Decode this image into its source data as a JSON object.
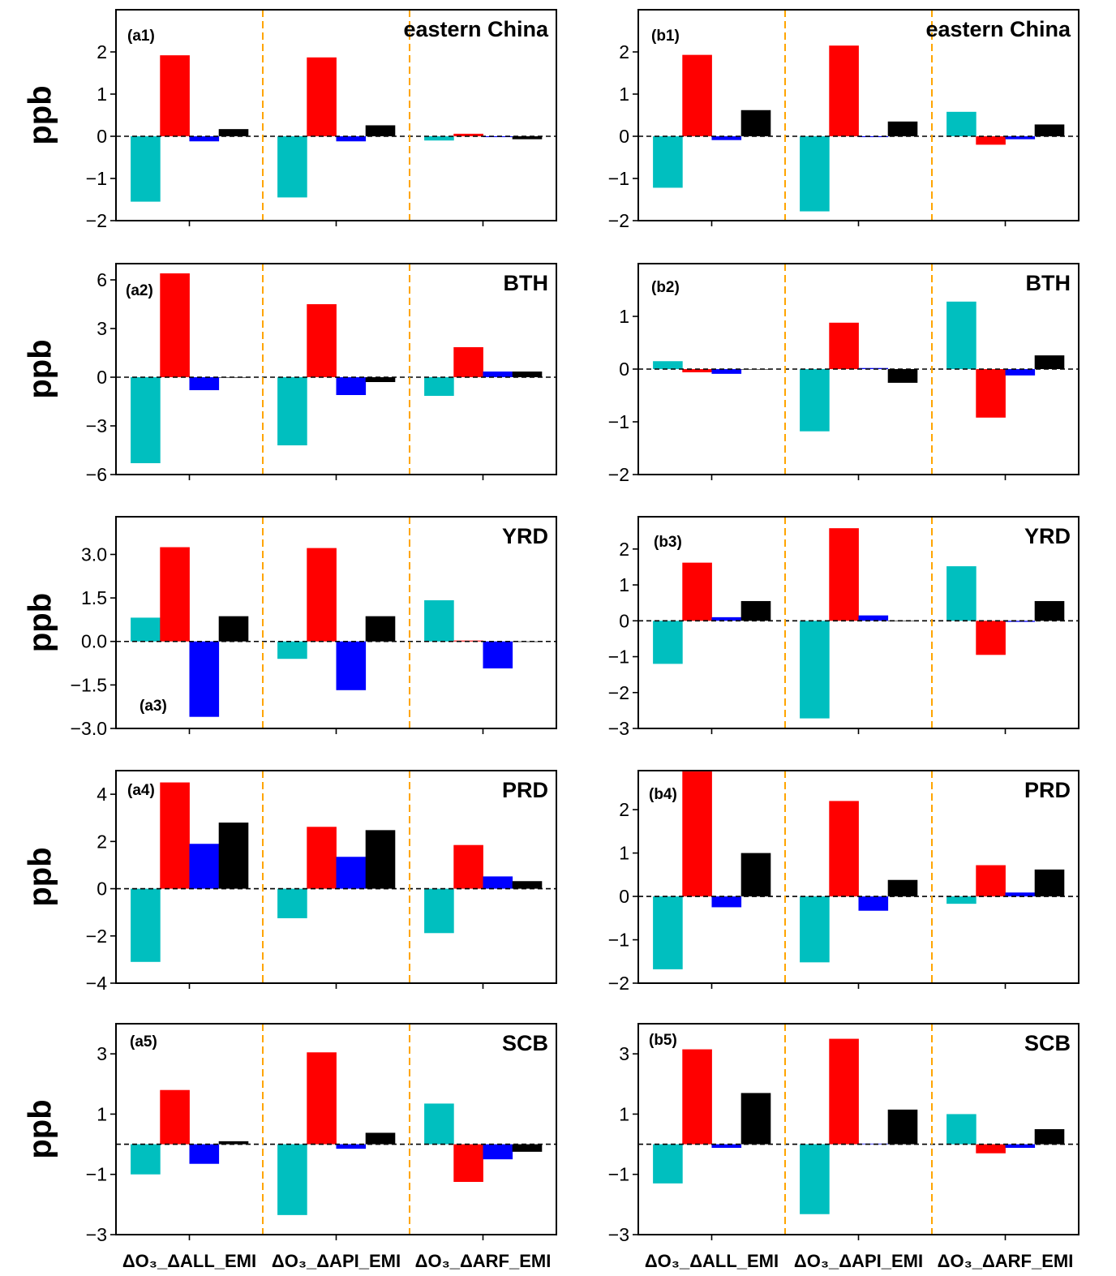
{
  "colors": {
    "dO3": "#00bfbf",
    "pos": "#ff0000",
    "neg": "#0000ff",
    "ext": "#000000",
    "separator": "#ffa500"
  },
  "chart_data": [
    {
      "type": "bar",
      "panel": "(a1)",
      "title": "eastern China",
      "ylabel": "ppb",
      "ylim": [
        -2,
        3
      ],
      "yticks": [
        -2,
        -1,
        0,
        1,
        2
      ],
      "ytick_labels": [
        "−2",
        "−1",
        "0",
        "1",
        "2"
      ],
      "categories": [
        "ΔO₃_ΔALL_EMI",
        "ΔO₃_ΔAPI_EMI",
        "ΔO₃_ΔARF_EMI"
      ],
      "values": [
        [
          -1.55,
          1.92,
          -0.12,
          0.17
        ],
        [
          -1.45,
          1.87,
          -0.12,
          0.26
        ],
        [
          -0.1,
          0.06,
          -0.02,
          -0.07
        ]
      ]
    },
    {
      "type": "bar",
      "panel": "(a2)",
      "title": "BTH",
      "ylabel": "ppb",
      "ylim": [
        -6,
        7
      ],
      "yticks": [
        -6,
        -3,
        0,
        3,
        6
      ],
      "ytick_labels": [
        "−6",
        "−3",
        "0",
        "3",
        "6"
      ],
      "categories": [
        "ΔO₃_ΔALL_EMI",
        "ΔO₃_ΔAPI_EMI",
        "ΔO₃_ΔARF_EMI"
      ],
      "values": [
        [
          -5.3,
          6.4,
          -0.8,
          0.0
        ],
        [
          -4.2,
          4.5,
          -1.1,
          -0.3
        ],
        [
          -1.15,
          1.85,
          0.35,
          0.35
        ]
      ]
    },
    {
      "type": "bar",
      "panel": "(a3)",
      "title": "YRD",
      "ylabel": "ppb",
      "ylim": [
        -3,
        4.3
      ],
      "yticks": [
        -3,
        -1.5,
        0,
        1.5,
        3
      ],
      "ytick_labels": [
        "−3.0",
        "−1.5",
        "0.0",
        "1.5",
        "3.0"
      ],
      "categories": [
        "ΔO₃_ΔALL_EMI",
        "ΔO₃_ΔAPI_EMI",
        "ΔO₃_ΔARF_EMI"
      ],
      "values": [
        [
          0.82,
          3.25,
          -2.6,
          0.87
        ],
        [
          -0.6,
          3.22,
          -1.68,
          0.87
        ],
        [
          1.42,
          0.03,
          -0.93,
          0.0
        ]
      ]
    },
    {
      "type": "bar",
      "panel": "(a4)",
      "title": "PRD",
      "ylabel": "ppb",
      "ylim": [
        -4,
        5
      ],
      "yticks": [
        -4,
        -2,
        0,
        2,
        4
      ],
      "ytick_labels": [
        "−4",
        "−2",
        "0",
        "2",
        "4"
      ],
      "categories": [
        "ΔO₃_ΔALL_EMI",
        "ΔO₃_ΔAPI_EMI",
        "ΔO₃_ΔARF_EMI"
      ],
      "values": [
        [
          -3.1,
          4.5,
          1.9,
          2.8
        ],
        [
          -1.25,
          2.62,
          1.35,
          2.48
        ],
        [
          -1.88,
          1.85,
          0.52,
          0.32
        ]
      ]
    },
    {
      "type": "bar",
      "panel": "(a5)",
      "title": "SCB",
      "ylabel": "ppb",
      "ylim": [
        -3,
        4
      ],
      "yticks": [
        -3,
        -1,
        1,
        3
      ],
      "ytick_labels": [
        "−3",
        "−1",
        "1",
        "3"
      ],
      "categories": [
        "ΔO₃_ΔALL_EMI",
        "ΔO₃_ΔAPI_EMI",
        "ΔO₃_ΔARF_EMI"
      ],
      "values": [
        [
          -1.0,
          1.8,
          -0.65,
          0.1
        ],
        [
          -2.35,
          3.05,
          -0.15,
          0.38
        ],
        [
          1.35,
          -1.25,
          -0.5,
          -0.25
        ]
      ]
    },
    {
      "type": "bar",
      "panel": "(b1)",
      "title": "eastern China",
      "ylabel": "",
      "ylim": [
        -2,
        3
      ],
      "yticks": [
        -2,
        -1,
        0,
        1,
        2
      ],
      "ytick_labels": [
        "−2",
        "−1",
        "0",
        "1",
        "2"
      ],
      "categories": [
        "ΔO₃_ΔALL_EMI",
        "ΔO₃_ΔAPI_EMI",
        "ΔO₃_ΔARF_EMI"
      ],
      "values": [
        [
          -1.22,
          1.93,
          -0.09,
          0.62
        ],
        [
          -1.78,
          2.15,
          -0.02,
          0.35
        ],
        [
          0.58,
          -0.2,
          -0.07,
          0.28
        ]
      ]
    },
    {
      "type": "bar",
      "panel": "(b2)",
      "title": "BTH",
      "ylabel": "",
      "ylim": [
        -2,
        2
      ],
      "yticks": [
        -2,
        -1,
        0,
        1
      ],
      "ytick_labels": [
        "−2",
        "−1",
        "0",
        "1"
      ],
      "categories": [
        "ΔO₃_ΔALL_EMI",
        "ΔO₃_ΔAPI_EMI",
        "ΔO₃_ΔARF_EMI"
      ],
      "values": [
        [
          0.15,
          -0.06,
          -0.09,
          0.0
        ],
        [
          -1.18,
          0.88,
          0.02,
          -0.26
        ],
        [
          1.28,
          -0.92,
          -0.12,
          0.26
        ]
      ]
    },
    {
      "type": "bar",
      "panel": "(b3)",
      "title": "YRD",
      "ylabel": "",
      "ylim": [
        -3,
        2.9
      ],
      "yticks": [
        -3,
        -2,
        -1,
        0,
        1,
        2
      ],
      "ytick_labels": [
        "−3",
        "−2",
        "−1",
        "0",
        "1",
        "2"
      ],
      "categories": [
        "ΔO₃_ΔALL_EMI",
        "ΔO₃_ΔAPI_EMI",
        "ΔO₃_ΔARF_EMI"
      ],
      "values": [
        [
          -1.2,
          1.62,
          0.1,
          0.55
        ],
        [
          -2.72,
          2.58,
          0.15,
          0.0
        ],
        [
          1.52,
          -0.95,
          -0.03,
          0.55
        ]
      ]
    },
    {
      "type": "bar",
      "panel": "(b4)",
      "title": "PRD",
      "ylabel": "",
      "ylim": [
        -2,
        2.9
      ],
      "yticks": [
        -2,
        -1,
        0,
        1,
        2
      ],
      "ytick_labels": [
        "−2",
        "−1",
        "0",
        "1",
        "2"
      ],
      "categories": [
        "ΔO₃_ΔALL_EMI",
        "ΔO₃_ΔAPI_EMI",
        "ΔO₃_ΔARF_EMI"
      ],
      "values": [
        [
          -1.68,
          2.88,
          -0.25,
          1.0
        ],
        [
          -1.52,
          2.2,
          -0.33,
          0.38
        ],
        [
          -0.17,
          0.72,
          0.09,
          0.62
        ]
      ]
    },
    {
      "type": "bar",
      "panel": "(b5)",
      "title": "SCB",
      "ylabel": "",
      "ylim": [
        -3,
        4
      ],
      "yticks": [
        -3,
        -1,
        1,
        3
      ],
      "ytick_labels": [
        "−3",
        "−1",
        "1",
        "3"
      ],
      "categories": [
        "ΔO₃_ΔALL_EMI",
        "ΔO₃_ΔAPI_EMI",
        "ΔO₃_ΔARF_EMI"
      ],
      "values": [
        [
          -1.3,
          3.15,
          -0.12,
          1.7
        ],
        [
          -2.32,
          3.5,
          0.02,
          1.15
        ],
        [
          1.0,
          -0.3,
          -0.12,
          0.5
        ]
      ]
    }
  ]
}
